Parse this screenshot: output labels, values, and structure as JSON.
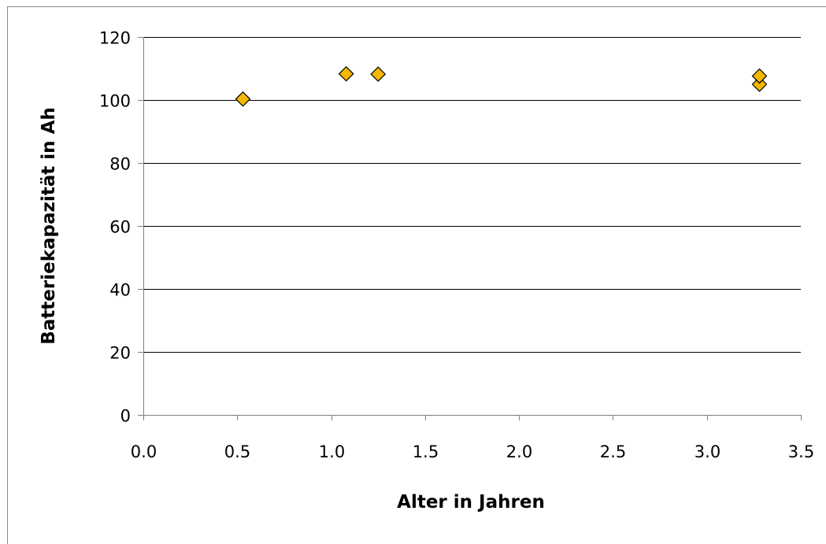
{
  "chart_data": {
    "type": "scatter",
    "title": "",
    "xlabel": "Alter in Jahren",
    "ylabel": "Batteriekapazität  in Ah",
    "xlim": [
      0.0,
      3.5
    ],
    "ylim": [
      0,
      120
    ],
    "x_ticks": [
      "0.0",
      "0.5",
      "1.0",
      "1.5",
      "2.0",
      "2.5",
      "3.0",
      "3.5"
    ],
    "y_ticks": [
      "0",
      "20",
      "40",
      "60",
      "80",
      "100",
      "120"
    ],
    "grid": "horizontal major gridlines",
    "legend": "none",
    "marker": "diamond",
    "series": [
      {
        "color": "#f5b800",
        "points": [
          {
            "x": 0.53,
            "y": 100.3
          },
          {
            "x": 1.08,
            "y": 108.3
          },
          {
            "x": 1.25,
            "y": 108.2
          },
          {
            "x": 3.28,
            "y": 105.0
          },
          {
            "x": 3.28,
            "y": 107.6
          }
        ]
      }
    ]
  }
}
